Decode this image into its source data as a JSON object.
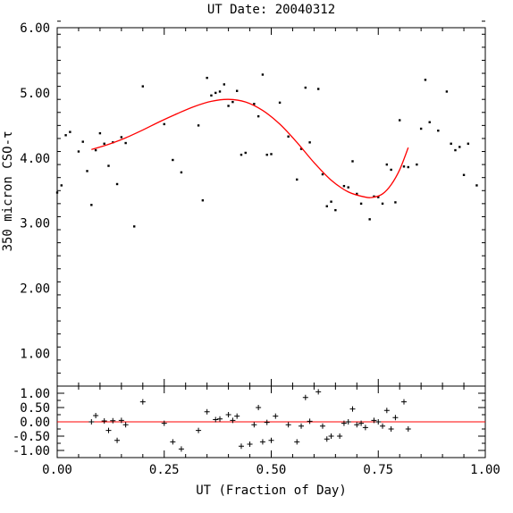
{
  "chart_data": [
    {
      "type": "scatter",
      "title": "UT Date: 20040312",
      "xlabel": "",
      "ylabel": "350 micron CSO-τ",
      "xlim": [
        0.0,
        1.0
      ],
      "ylim": [
        0.5,
        6.0
      ],
      "xticks": [
        "0.00",
        "0.25",
        "0.50",
        "0.75",
        "1.00"
      ],
      "yticks": [
        "1.00",
        "2.00",
        "3.00",
        "4.00",
        "5.00",
        "6.00"
      ],
      "grid": false,
      "series": [
        {
          "kind": "points",
          "color": "#000000",
          "x": [
            0.0,
            0.01,
            0.02,
            0.03,
            0.05,
            0.06,
            0.07,
            0.08,
            0.09,
            0.1,
            0.11,
            0.12,
            0.13,
            0.14,
            0.15,
            0.16,
            0.18,
            0.2,
            0.25,
            0.27,
            0.29,
            0.33,
            0.34,
            0.35,
            0.36,
            0.37,
            0.38,
            0.39,
            0.4,
            0.41,
            0.42,
            0.43,
            0.44,
            0.46,
            0.47,
            0.48,
            0.49,
            0.5,
            0.52,
            0.54,
            0.56,
            0.57,
            0.58,
            0.59,
            0.61,
            0.62,
            0.63,
            0.64,
            0.65,
            0.67,
            0.68,
            0.69,
            0.7,
            0.71,
            0.73,
            0.74,
            0.75,
            0.76,
            0.77,
            0.78,
            0.79,
            0.8,
            0.81,
            0.82,
            0.84,
            0.85,
            0.86,
            0.87,
            0.89,
            0.91,
            0.92,
            0.93,
            0.94,
            0.95,
            0.96,
            0.98
          ],
          "y": [
            3.47,
            3.58,
            4.35,
            4.4,
            4.1,
            4.25,
            3.8,
            3.28,
            4.12,
            4.38,
            4.22,
            3.88,
            4.24,
            3.6,
            4.32,
            4.23,
            2.95,
            5.1,
            4.52,
            3.97,
            3.78,
            4.5,
            3.35,
            5.23,
            4.96,
            5.0,
            5.02,
            5.13,
            4.8,
            4.86,
            5.03,
            4.05,
            4.08,
            4.83,
            4.64,
            5.28,
            4.05,
            4.06,
            4.85,
            4.33,
            3.67,
            4.14,
            5.08,
            4.24,
            5.06,
            3.75,
            3.26,
            3.33,
            3.2,
            3.57,
            3.55,
            3.95,
            3.45,
            3.3,
            3.06,
            3.41,
            3.4,
            3.3,
            3.9,
            3.82,
            3.32,
            4.58,
            3.87,
            3.86,
            3.9,
            4.45,
            5.2,
            4.55,
            4.42,
            5.02,
            4.22,
            4.12,
            4.17,
            3.74,
            4.22,
            3.58
          ]
        },
        {
          "kind": "fit",
          "color": "#ff0000",
          "x": [
            0.08,
            0.12,
            0.16,
            0.2,
            0.24,
            0.28,
            0.32,
            0.36,
            0.4,
            0.44,
            0.48,
            0.52,
            0.56,
            0.6,
            0.64,
            0.68,
            0.72,
            0.74,
            0.76,
            0.78,
            0.8,
            0.82
          ],
          "y": [
            4.13,
            4.21,
            4.31,
            4.43,
            4.56,
            4.68,
            4.79,
            4.87,
            4.9,
            4.86,
            4.73,
            4.52,
            4.24,
            3.93,
            3.66,
            3.48,
            3.4,
            3.4,
            3.45,
            3.59,
            3.82,
            4.16
          ]
        }
      ]
    },
    {
      "type": "scatter",
      "title": "",
      "xlabel": "UT (Fraction of Day)",
      "ylabel": "",
      "xlim": [
        0.0,
        1.0
      ],
      "ylim": [
        -1.25,
        1.25
      ],
      "xticks": [
        "0.00",
        "0.25",
        "0.50",
        "0.75",
        "1.00"
      ],
      "yticks": [
        "-1.00",
        "-0.50",
        "0.00",
        "0.50",
        "1.00"
      ],
      "grid": false,
      "zero_line_color": "#ff0000",
      "series": [
        {
          "kind": "residuals",
          "marker": "plus",
          "color": "#000000",
          "x": [
            0.08,
            0.09,
            0.11,
            0.12,
            0.13,
            0.14,
            0.15,
            0.16,
            0.2,
            0.25,
            0.27,
            0.29,
            0.33,
            0.35,
            0.37,
            0.38,
            0.4,
            0.41,
            0.42,
            0.43,
            0.45,
            0.46,
            0.47,
            0.48,
            0.49,
            0.5,
            0.51,
            0.54,
            0.56,
            0.57,
            0.58,
            0.59,
            0.61,
            0.62,
            0.63,
            0.64,
            0.66,
            0.67,
            0.68,
            0.69,
            0.7,
            0.71,
            0.72,
            0.74,
            0.75,
            0.76,
            0.77,
            0.78,
            0.79,
            0.81,
            0.82
          ],
          "y": [
            0.0,
            0.22,
            0.03,
            -0.3,
            0.04,
            -0.65,
            0.05,
            -0.1,
            0.7,
            -0.05,
            -0.7,
            -0.95,
            -0.3,
            0.35,
            0.08,
            0.1,
            0.25,
            0.05,
            0.2,
            -0.85,
            -0.78,
            -0.1,
            0.5,
            -0.7,
            -0.02,
            -0.65,
            0.2,
            -0.1,
            -0.7,
            -0.15,
            0.85,
            0.02,
            1.05,
            -0.15,
            -0.6,
            -0.5,
            -0.5,
            -0.05,
            0.0,
            0.45,
            -0.1,
            -0.05,
            -0.2,
            0.05,
            0.0,
            -0.15,
            0.4,
            -0.25,
            0.15,
            0.7,
            -0.25
          ]
        }
      ]
    }
  ]
}
